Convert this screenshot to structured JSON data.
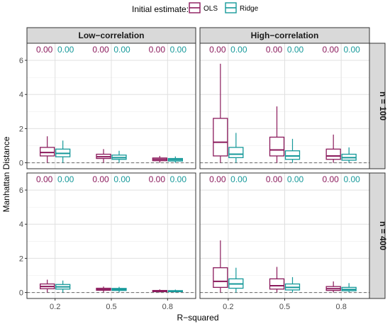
{
  "chart_data": {
    "type": "boxplot",
    "legend": {
      "title": "Initial estimate:",
      "position": "top",
      "entries": [
        {
          "name": "OLS",
          "color": "#8B1A5C"
        },
        {
          "name": "Ridge",
          "color": "#16999A"
        }
      ]
    },
    "xlabel": "R−squared",
    "ylabel": "Manhattan Distance",
    "x_categories": [
      "0.2",
      "0.5",
      "0.8"
    ],
    "y_ticks": [
      0,
      2,
      4,
      6
    ],
    "ylim": [
      -0.35,
      7.0
    ],
    "reference_line": {
      "y": 0,
      "style": "dashed",
      "color": "#777777"
    },
    "grid": true,
    "columns": [
      "Low−correlation",
      "High−correlation"
    ],
    "rows": [
      "n = 100",
      "n = 400"
    ],
    "panels": [
      {
        "column": "Low−correlation",
        "row": "n = 100",
        "labels": [
          [
            "0.00",
            "0.00"
          ],
          [
            "0.00",
            "0.00"
          ],
          [
            "0.00",
            "0.00"
          ]
        ],
        "boxes": [
          {
            "x": "0.2",
            "series": "OLS",
            "min": 0.0,
            "q1": 0.4,
            "median": 0.6,
            "q3": 0.9,
            "max": 1.55
          },
          {
            "x": "0.2",
            "series": "Ridge",
            "min": 0.0,
            "q1": 0.35,
            "median": 0.55,
            "q3": 0.8,
            "max": 1.3
          },
          {
            "x": "0.5",
            "series": "OLS",
            "min": 0.0,
            "q1": 0.25,
            "median": 0.35,
            "q3": 0.5,
            "max": 0.8
          },
          {
            "x": "0.5",
            "series": "Ridge",
            "min": 0.0,
            "q1": 0.2,
            "median": 0.3,
            "q3": 0.45,
            "max": 0.7
          },
          {
            "x": "0.8",
            "series": "OLS",
            "min": 0.0,
            "q1": 0.12,
            "median": 0.2,
            "q3": 0.28,
            "max": 0.4
          },
          {
            "x": "0.8",
            "series": "Ridge",
            "min": 0.0,
            "q1": 0.1,
            "median": 0.18,
            "q3": 0.25,
            "max": 0.37
          }
        ]
      },
      {
        "column": "High−correlation",
        "row": "n = 100",
        "labels": [
          [
            "0.00",
            "0.00"
          ],
          [
            "0.00",
            "0.00"
          ],
          [
            "0.00",
            "0.00"
          ]
        ],
        "boxes": [
          {
            "x": "0.2",
            "series": "OLS",
            "min": 0.0,
            "q1": 0.4,
            "median": 1.2,
            "q3": 2.6,
            "max": 5.8
          },
          {
            "x": "0.2",
            "series": "Ridge",
            "min": 0.0,
            "q1": 0.3,
            "median": 0.5,
            "q3": 0.9,
            "max": 1.75
          },
          {
            "x": "0.5",
            "series": "OLS",
            "min": 0.0,
            "q1": 0.4,
            "median": 0.75,
            "q3": 1.5,
            "max": 3.3
          },
          {
            "x": "0.5",
            "series": "Ridge",
            "min": 0.0,
            "q1": 0.2,
            "median": 0.4,
            "q3": 0.7,
            "max": 1.4
          },
          {
            "x": "0.8",
            "series": "OLS",
            "min": 0.0,
            "q1": 0.2,
            "median": 0.4,
            "q3": 0.8,
            "max": 1.65
          },
          {
            "x": "0.8",
            "series": "Ridge",
            "min": 0.0,
            "q1": 0.15,
            "median": 0.3,
            "q3": 0.5,
            "max": 0.9
          }
        ]
      },
      {
        "column": "Low−correlation",
        "row": "n = 400",
        "labels": [
          [
            "0.00",
            "0.00"
          ],
          [
            "0.00",
            "0.00"
          ],
          [
            "0.00",
            "0.00"
          ]
        ],
        "boxes": [
          {
            "x": "0.2",
            "series": "OLS",
            "min": 0.0,
            "q1": 0.22,
            "median": 0.35,
            "q3": 0.5,
            "max": 0.75
          },
          {
            "x": "0.2",
            "series": "Ridge",
            "min": 0.0,
            "q1": 0.2,
            "median": 0.33,
            "q3": 0.47,
            "max": 0.7
          },
          {
            "x": "0.5",
            "series": "OLS",
            "min": 0.0,
            "q1": 0.13,
            "median": 0.18,
            "q3": 0.25,
            "max": 0.35
          },
          {
            "x": "0.5",
            "series": "Ridge",
            "min": 0.0,
            "q1": 0.12,
            "median": 0.17,
            "q3": 0.24,
            "max": 0.33
          },
          {
            "x": "0.8",
            "series": "OLS",
            "min": 0.0,
            "q1": 0.05,
            "median": 0.08,
            "q3": 0.12,
            "max": 0.18
          },
          {
            "x": "0.8",
            "series": "Ridge",
            "min": 0.0,
            "q1": 0.05,
            "median": 0.08,
            "q3": 0.11,
            "max": 0.17
          }
        ]
      },
      {
        "column": "High−correlation",
        "row": "n = 400",
        "labels": [
          [
            "0.00",
            "0.00"
          ],
          [
            "0.00",
            "0.00"
          ],
          [
            "0.00",
            "0.00"
          ]
        ],
        "boxes": [
          {
            "x": "0.2",
            "series": "OLS",
            "min": 0.0,
            "q1": 0.3,
            "median": 0.65,
            "q3": 1.45,
            "max": 3.05
          },
          {
            "x": "0.2",
            "series": "Ridge",
            "min": 0.0,
            "q1": 0.25,
            "median": 0.5,
            "q3": 0.8,
            "max": 1.45
          },
          {
            "x": "0.5",
            "series": "OLS",
            "min": 0.0,
            "q1": 0.2,
            "median": 0.4,
            "q3": 0.8,
            "max": 1.5
          },
          {
            "x": "0.5",
            "series": "Ridge",
            "min": 0.0,
            "q1": 0.15,
            "median": 0.3,
            "q3": 0.5,
            "max": 0.9
          },
          {
            "x": "0.8",
            "series": "OLS",
            "min": 0.0,
            "q1": 0.12,
            "median": 0.22,
            "q3": 0.35,
            "max": 0.65
          },
          {
            "x": "0.8",
            "series": "Ridge",
            "min": 0.0,
            "q1": 0.1,
            "median": 0.18,
            "q3": 0.3,
            "max": 0.55
          }
        ]
      }
    ]
  }
}
